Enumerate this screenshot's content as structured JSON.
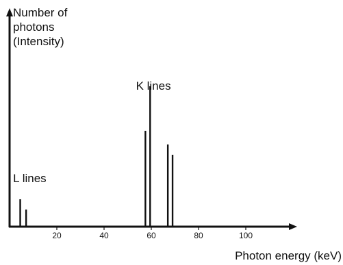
{
  "chart_data": {
    "type": "bar",
    "title": "",
    "ylabel": "Number of photons (Intensity)",
    "ylabel_lines": [
      "Number of",
      "photons",
      "(Intensity)"
    ],
    "xlabel": "Photon energy (keV)",
    "x_ticks": [
      20,
      40,
      60,
      80,
      100
    ],
    "xlim": [
      0,
      117
    ],
    "ylim": [
      0,
      1
    ],
    "y_ticks": [],
    "grid": false,
    "legend": "none",
    "annotations": [
      {
        "text": "L lines",
        "anchor_x": 1.5,
        "anchor_y": 0.26
      },
      {
        "text": "K lines",
        "anchor_x": 53.5,
        "anchor_y": 0.8
      }
    ],
    "series": [
      {
        "values": [
          {
            "x": 4.5,
            "y": 0.16
          },
          {
            "x": 7,
            "y": 0.1
          },
          {
            "x": 57.5,
            "y": 0.56
          },
          {
            "x": 59.5,
            "y": 0.82
          },
          {
            "x": 67,
            "y": 0.48
          },
          {
            "x": 69,
            "y": 0.42
          }
        ]
      }
    ],
    "colors": {
      "ink": "#111111"
    }
  }
}
